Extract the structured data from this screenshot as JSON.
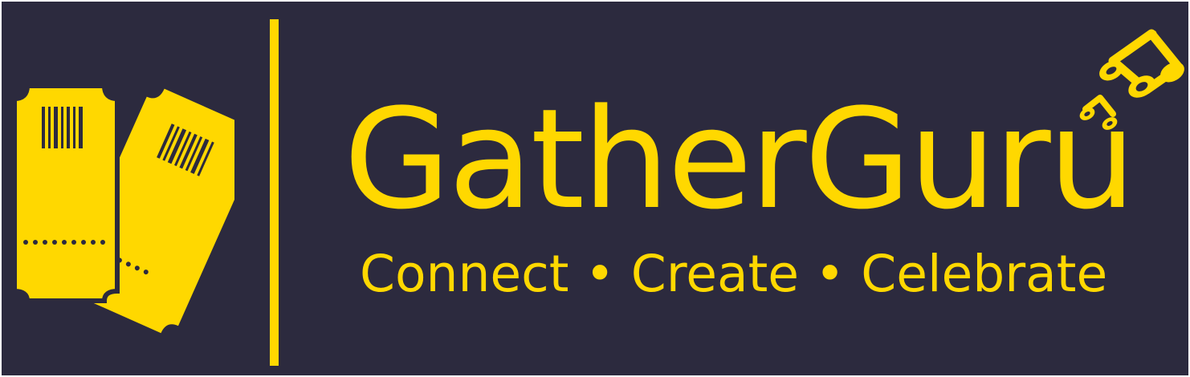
{
  "brand": {
    "name": "GatherGuru",
    "tagline": "Connect • Create • Celebrate"
  },
  "colors": {
    "background": "#2c2a3e",
    "accent": "#ffd800",
    "border": "#ffffff"
  },
  "icons": {
    "left": "event-tickets-icon",
    "right": "music-notes-icon"
  }
}
